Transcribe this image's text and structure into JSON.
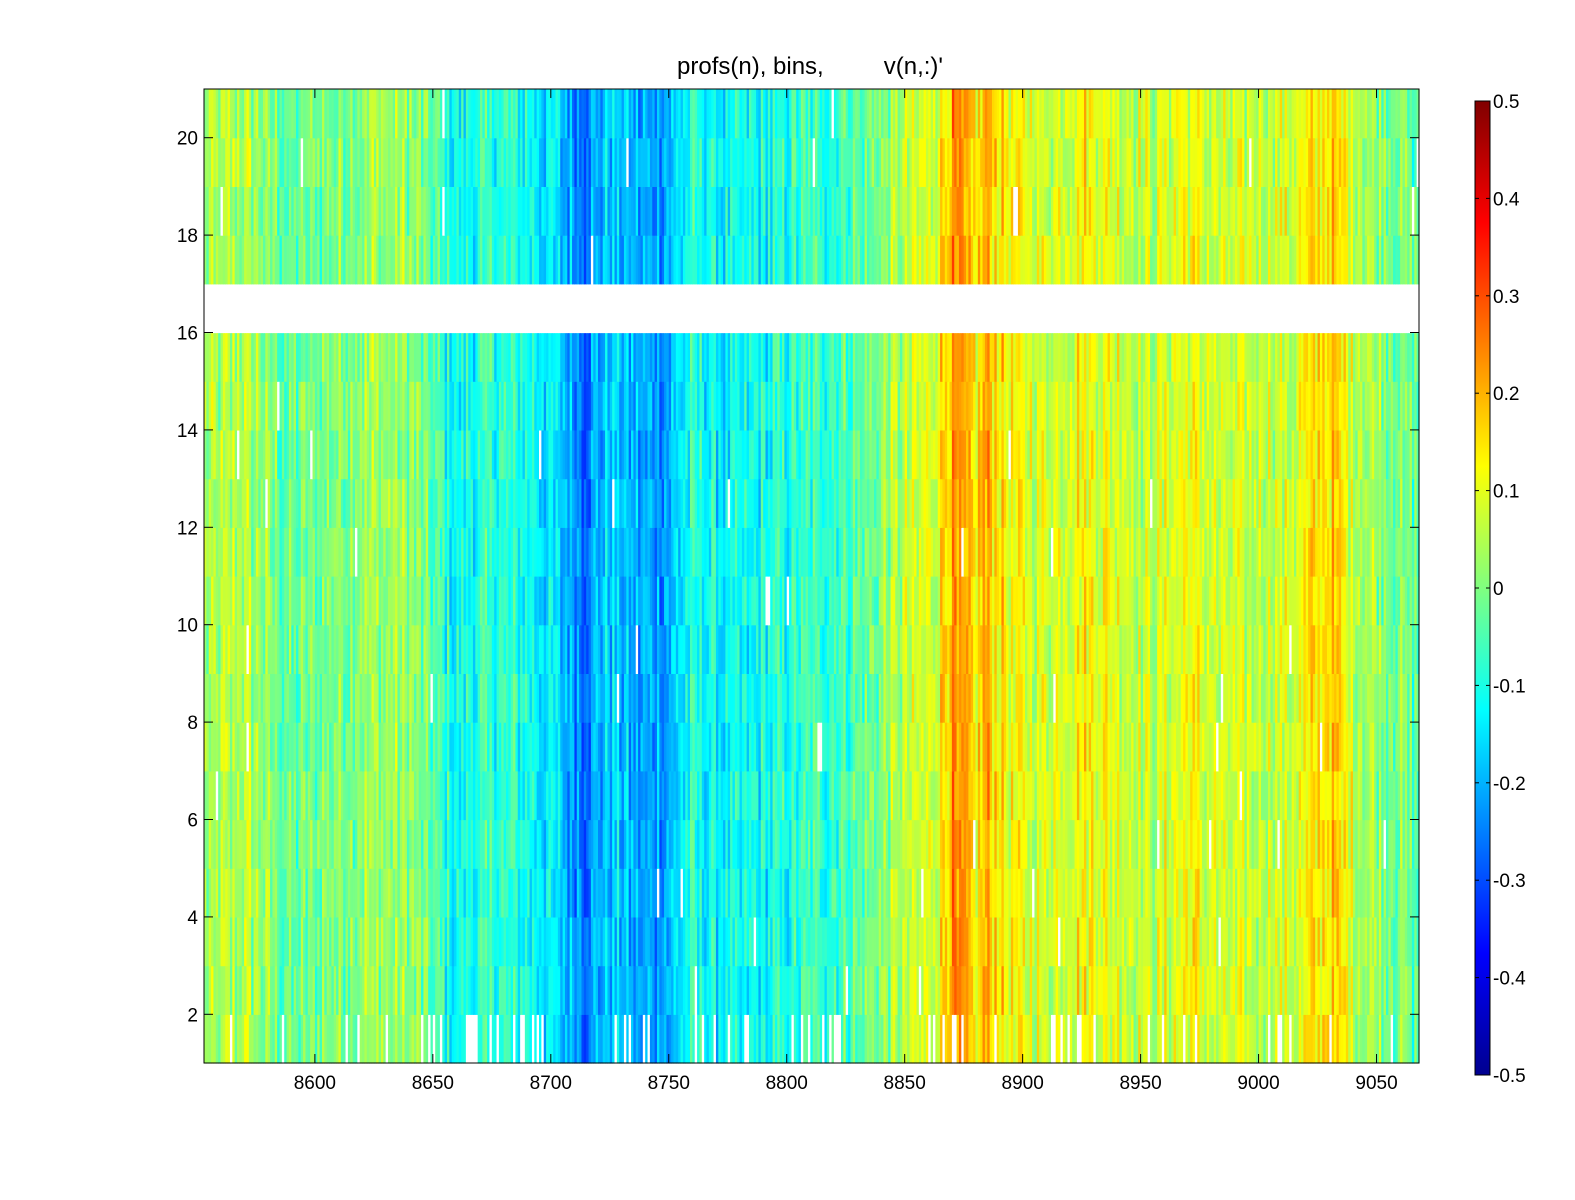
{
  "chart_data": {
    "type": "heatmap",
    "title": "profs(n), bins,         v(n,:)'",
    "colormap": "jet",
    "xlim": [
      8553,
      9068
    ],
    "ylim": [
      1,
      21
    ],
    "x_ticks": [
      8600,
      8650,
      8700,
      8750,
      8800,
      8850,
      8900,
      8950,
      9000,
      9050
    ],
    "x_tick_labels": [
      "8600",
      "8650",
      "8700",
      "8750",
      "8800",
      "8850",
      "8900",
      "8950",
      "9000",
      "9050"
    ],
    "y_ticks": [
      2,
      4,
      6,
      8,
      10,
      12,
      14,
      16,
      18,
      20
    ],
    "y_tick_labels": [
      "2",
      "4",
      "6",
      "8",
      "10",
      "12",
      "14",
      "16",
      "18",
      "20"
    ],
    "rows": [
      1,
      2,
      3,
      4,
      5,
      6,
      7,
      8,
      9,
      10,
      11,
      12,
      13,
      14,
      15,
      16,
      17,
      18,
      19,
      20
    ],
    "missing_rows": [
      16
    ],
    "bin_width": 1,
    "column_profile": [
      {
        "x": 8553,
        "v": 0.02
      },
      {
        "x": 8570,
        "v": 0.05
      },
      {
        "x": 8590,
        "v": -0.04
      },
      {
        "x": 8605,
        "v": 0.0
      },
      {
        "x": 8625,
        "v": 0.03
      },
      {
        "x": 8640,
        "v": 0.02
      },
      {
        "x": 8660,
        "v": -0.12
      },
      {
        "x": 8675,
        "v": -0.08
      },
      {
        "x": 8690,
        "v": -0.1
      },
      {
        "x": 8700,
        "v": -0.15
      },
      {
        "x": 8715,
        "v": -0.24
      },
      {
        "x": 8725,
        "v": -0.17
      },
      {
        "x": 8740,
        "v": -0.22
      },
      {
        "x": 8750,
        "v": -0.2
      },
      {
        "x": 8760,
        "v": -0.1
      },
      {
        "x": 8775,
        "v": -0.14
      },
      {
        "x": 8790,
        "v": -0.12
      },
      {
        "x": 8810,
        "v": -0.08
      },
      {
        "x": 8830,
        "v": -0.04
      },
      {
        "x": 8850,
        "v": 0.05
      },
      {
        "x": 8862,
        "v": 0.09
      },
      {
        "x": 8870,
        "v": 0.22
      },
      {
        "x": 8880,
        "v": 0.13
      },
      {
        "x": 8885,
        "v": 0.2
      },
      {
        "x": 8895,
        "v": 0.11
      },
      {
        "x": 8910,
        "v": 0.08
      },
      {
        "x": 8925,
        "v": 0.13
      },
      {
        "x": 8940,
        "v": 0.1
      },
      {
        "x": 8955,
        "v": 0.06
      },
      {
        "x": 8970,
        "v": 0.12
      },
      {
        "x": 8985,
        "v": 0.06
      },
      {
        "x": 9000,
        "v": 0.07
      },
      {
        "x": 9015,
        "v": 0.08
      },
      {
        "x": 9030,
        "v": 0.17
      },
      {
        "x": 9045,
        "v": 0.05
      },
      {
        "x": 9060,
        "v": 0.0
      },
      {
        "x": 9068,
        "v": -0.05
      }
    ],
    "colorbar": {
      "range": [
        -0.5,
        0.5
      ],
      "ticks": [
        -0.5,
        -0.4,
        -0.3,
        -0.2,
        -0.1,
        0,
        0.1,
        0.2,
        0.3,
        0.4,
        0.5
      ],
      "tick_labels": [
        "-0.5",
        "-0.4",
        "-0.3",
        "-0.2",
        "-0.1",
        "0",
        "0.1",
        "0.2",
        "0.3",
        "0.4",
        "0.5"
      ]
    },
    "grid": false
  }
}
